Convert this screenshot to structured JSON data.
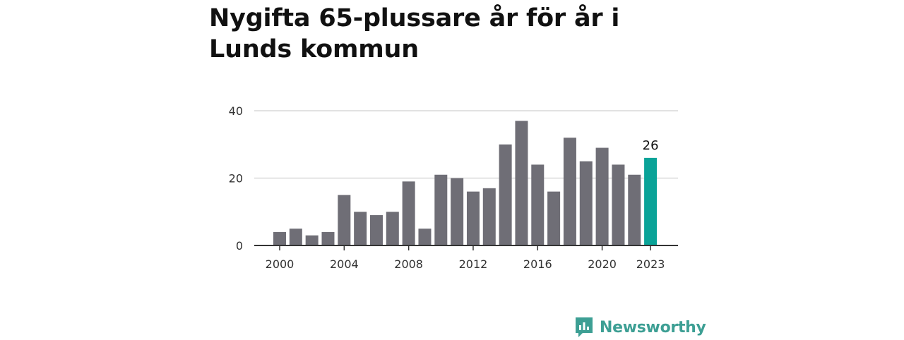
{
  "title": "Nygifta 65-plussare år för år i Lunds kommun",
  "brand": {
    "name": "Newsworthy",
    "color": "#3d9f94",
    "icon": "newsworthy-logo-icon"
  },
  "colors": {
    "bar": "#6f6e76",
    "highlight": "#0aa398",
    "grid": "#d9d9d9",
    "axis": "#333333"
  },
  "chart_data": {
    "type": "bar",
    "title": "Nygifta 65-plussare år för år i Lunds kommun",
    "xlabel": "",
    "ylabel": "",
    "x": [
      2000,
      2001,
      2002,
      2003,
      2004,
      2005,
      2006,
      2007,
      2008,
      2009,
      2010,
      2011,
      2012,
      2013,
      2014,
      2015,
      2016,
      2017,
      2018,
      2019,
      2020,
      2021,
      2022,
      2023
    ],
    "values": [
      4,
      5,
      3,
      4,
      15,
      10,
      9,
      10,
      19,
      5,
      21,
      20,
      16,
      17,
      30,
      37,
      24,
      16,
      32,
      25,
      29,
      24,
      21,
      26
    ],
    "ylim": [
      0,
      40
    ],
    "yticks": [
      0,
      20,
      40
    ],
    "xticks": [
      "2000",
      "2004",
      "2008",
      "2012",
      "2016",
      "2020",
      "2023"
    ],
    "highlight": {
      "x": 2023,
      "label": "26"
    },
    "grid": true
  }
}
